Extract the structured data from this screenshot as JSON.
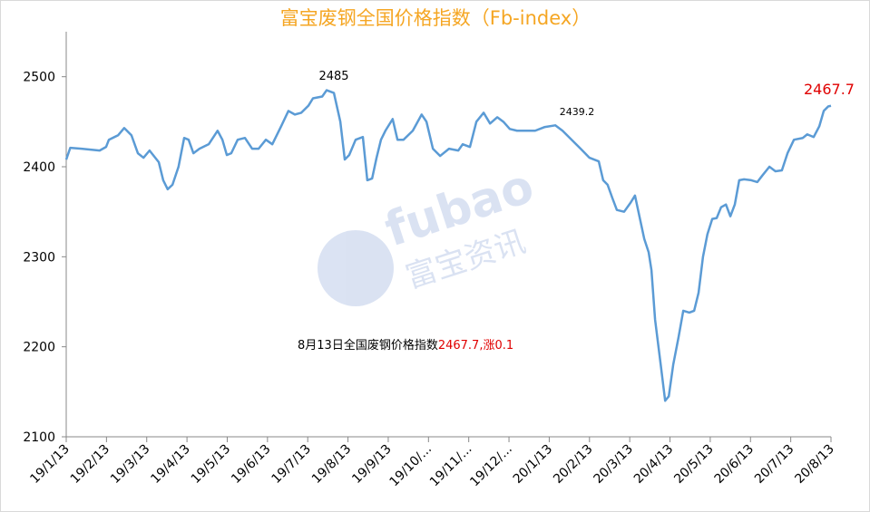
{
  "chart_data": {
    "type": "line",
    "title": "富宝废钢全国价格指数（Fb-index）",
    "watermark": {
      "brand": "fubao",
      "brand_cn": "富宝资讯"
    },
    "annotations": {
      "peak": "2485",
      "mid": "2439.2",
      "last": "2467.7",
      "note": "8月13日全国废钢价格指数",
      "note_value": "2467.7,涨0.1"
    },
    "xlim": [
      0,
      19
    ],
    "xticks": [
      {
        "value": 0,
        "label": "19/1/13"
      },
      {
        "value": 1,
        "label": "19/2/13"
      },
      {
        "value": 2,
        "label": "19/3/13"
      },
      {
        "value": 3,
        "label": "19/4/13"
      },
      {
        "value": 4,
        "label": "19/5/13"
      },
      {
        "value": 5,
        "label": "19/6/13"
      },
      {
        "value": 6,
        "label": "19/7/13"
      },
      {
        "value": 7,
        "label": "19/8/13"
      },
      {
        "value": 8,
        "label": "19/9/13"
      },
      {
        "value": 9,
        "label": "19/10/..."
      },
      {
        "value": 10,
        "label": "19/11/..."
      },
      {
        "value": 11,
        "label": "19/12/..."
      },
      {
        "value": 12,
        "label": "20/1/13"
      },
      {
        "value": 13,
        "label": "20/2/13"
      },
      {
        "value": 14,
        "label": "20/3/13"
      },
      {
        "value": 15,
        "label": "20/4/13"
      },
      {
        "value": 16,
        "label": "20/5/13"
      },
      {
        "value": 17,
        "label": "20/6/13"
      },
      {
        "value": 18,
        "label": "20/7/13"
      },
      {
        "value": 19,
        "label": "20/8/13"
      }
    ],
    "ylim": [
      2100,
      2550
    ],
    "yticks": [
      2100,
      2200,
      2300,
      2400,
      2500
    ],
    "grid": false,
    "series": [
      {
        "color": "#5b9bd5",
        "x": [
          0,
          0.1,
          0.38,
          0.83,
          0.99,
          1.06,
          1.29,
          1.44,
          1.62,
          1.78,
          1.92,
          2.07,
          2.3,
          2.41,
          2.52,
          2.64,
          2.79,
          2.93,
          3.04,
          3.16,
          3.31,
          3.54,
          3.76,
          3.88,
          3.99,
          4.1,
          4.26,
          4.44,
          4.62,
          4.78,
          4.96,
          5.12,
          5.34,
          5.52,
          5.68,
          5.84,
          6.02,
          6.13,
          6.36,
          6.47,
          6.65,
          6.81,
          6.92,
          7.03,
          7.19,
          7.37,
          7.48,
          7.6,
          7.71,
          7.82,
          7.93,
          8.11,
          8.23,
          8.38,
          8.61,
          8.83,
          8.95,
          9.11,
          9.29,
          9.51,
          9.74,
          9.85,
          10.03,
          10.19,
          10.37,
          10.53,
          10.71,
          10.86,
          11.02,
          11.2,
          11.43,
          11.65,
          11.88,
          12.15,
          12.33,
          12.78,
          13.0,
          13.23,
          13.34,
          13.45,
          13.57,
          13.68,
          13.86,
          14.02,
          14.13,
          14.36,
          14.47,
          14.54,
          14.63,
          14.77,
          14.88,
          14.97,
          15.08,
          15.21,
          15.33,
          15.48,
          15.6,
          15.71,
          15.82,
          15.93,
          16.05,
          16.16,
          16.27,
          16.39,
          16.5,
          16.61,
          16.72,
          16.84,
          17.02,
          17.17,
          17.29,
          17.47,
          17.62,
          17.78,
          17.92,
          18.08,
          18.3,
          18.41,
          18.57,
          18.71,
          18.82,
          18.93,
          19.0
        ],
        "values": [
          2408,
          2421,
          2420,
          2418,
          2422,
          2430,
          2435,
          2443,
          2435,
          2415,
          2410,
          2418,
          2405,
          2385,
          2375,
          2380,
          2400,
          2432,
          2430,
          2415,
          2420,
          2425,
          2440,
          2430,
          2413,
          2415,
          2430,
          2432,
          2420,
          2420,
          2430,
          2425,
          2445,
          2462,
          2458,
          2460,
          2468,
          2476,
          2478,
          2485,
          2482,
          2450,
          2408,
          2413,
          2430,
          2433,
          2385,
          2387,
          2410,
          2430,
          2440,
          2453,
          2430,
          2430,
          2440,
          2458,
          2450,
          2420,
          2412,
          2420,
          2418,
          2425,
          2422,
          2450,
          2460,
          2448,
          2455,
          2450,
          2442,
          2440,
          2440,
          2440,
          2444,
          2446,
          2440,
          2420,
          2410,
          2406,
          2385,
          2380,
          2365,
          2352,
          2350,
          2360,
          2368,
          2320,
          2305,
          2285,
          2230,
          2180,
          2140,
          2145,
          2180,
          2210,
          2240,
          2238,
          2240,
          2260,
          2300,
          2325,
          2342,
          2343,
          2355,
          2358,
          2345,
          2358,
          2385,
          2386,
          2385,
          2383,
          2390,
          2400,
          2395,
          2396,
          2415,
          2430,
          2432,
          2436,
          2433,
          2445,
          2462,
          2467,
          2467.7
        ]
      }
    ]
  }
}
